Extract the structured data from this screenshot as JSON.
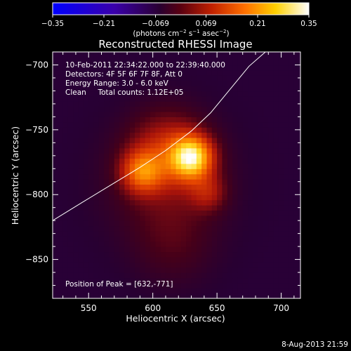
{
  "chart_data": {
    "type": "heatmap",
    "title": "Reconstructed RHESSI Image",
    "xlabel": "Heliocentric X (arcsec)",
    "ylabel": "Heliocentric Y (arcsec)",
    "xlim": [
      522,
      715
    ],
    "ylim": [
      -880,
      -690
    ],
    "x_ticks": [
      550,
      600,
      650,
      700
    ],
    "x_tick_labels": [
      "550",
      "600",
      "650",
      "700"
    ],
    "y_ticks": [
      -700,
      -750,
      -800,
      -850
    ],
    "y_tick_labels": [
      "−700",
      "−750",
      "−800",
      "−850"
    ],
    "colorbar": {
      "range": [
        -0.35,
        0.35
      ],
      "ticks": [
        -0.35,
        -0.21,
        -0.069,
        0.069,
        0.21,
        0.35
      ],
      "tick_labels": [
        "−0.35",
        "−0.21",
        "−0.069",
        "0.069",
        "0.21",
        "0.35"
      ],
      "label_prefix": "(photons cm",
      "label_exp1": "−2",
      "label_mid": " s",
      "label_exp2": "−1",
      "label_mid2": " asec",
      "label_exp3": "−2",
      "label_suffix": ")"
    },
    "annotations": [
      "10-Feb-2011 22:34:22.000 to 22:39:40.000",
      "Detectors: 4F 5F 6F 7F 8F, Att 0",
      "Energy Range: 3.0 - 6.0 keV",
      "Clean     Total counts: 1.12E+05"
    ],
    "peak_label": "Position of Peak = [632,-771]",
    "peak": [
      632,
      -771
    ],
    "sources": [
      {
        "x": 630,
        "y": -771,
        "amplitude": 0.3,
        "sigma": 11
      },
      {
        "x": 592,
        "y": -782,
        "amplitude": 0.17,
        "sigma": 11
      },
      {
        "x": 612,
        "y": -765,
        "amplitude": 0.1,
        "sigma": 20
      },
      {
        "x": 643,
        "y": -798,
        "amplitude": 0.08,
        "sigma": 10
      },
      {
        "x": 610,
        "y": -790,
        "amplitude": 0.06,
        "sigma": 32
      },
      {
        "x": 616,
        "y": -840,
        "amplitude": 0.035,
        "sigma": 22
      }
    ],
    "limb_curve": {
      "x": [
        522,
        545,
        570,
        590,
        610,
        630,
        645,
        660,
        675,
        690
      ],
      "y": [
        -820,
        -806,
        -791,
        -779,
        -766,
        -751,
        -737,
        -719,
        -701,
        -688
      ]
    }
  },
  "footer": {
    "date": "8-Aug-2013 21:59"
  }
}
